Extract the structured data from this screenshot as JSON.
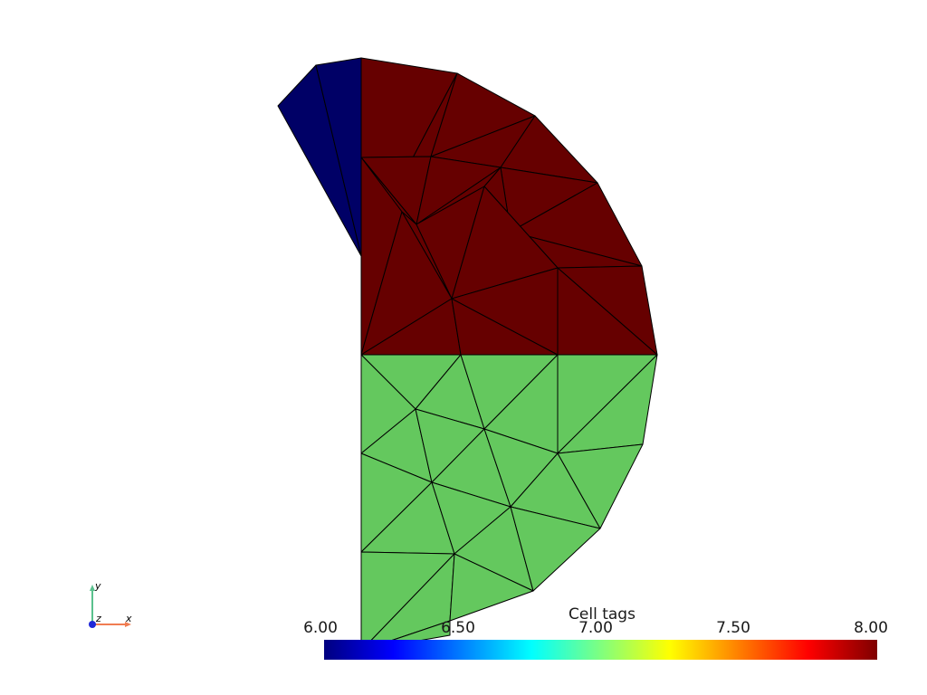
{
  "colors": {
    "tag6": "#000066",
    "tag7": "#64c85e",
    "tag8": "#660000",
    "edge": "#000000",
    "axis_x": "#f07d52",
    "axis_y": "#5ac18e",
    "axis_z": "#1f28d8"
  },
  "colormap": [
    "#00007f",
    "#0000ff",
    "#007fff",
    "#00ffff",
    "#7fff7f",
    "#ffff00",
    "#ff7f00",
    "#ff0000",
    "#7f0000"
  ],
  "scalar_bar": {
    "title": "Cell tags",
    "range": [
      6,
      8
    ],
    "tick_labels": [
      "6.00",
      "6.50",
      "7.00",
      "7.50",
      "8.00"
    ]
  },
  "axes": {
    "x": "x",
    "y": "y",
    "z": "z"
  },
  "mesh": {
    "nodes": [
      [
        0,
        0
      ],
      [
        0,
        1.09
      ],
      [
        0,
        2.18
      ],
      [
        0,
        3.28
      ],
      [
        1.06,
        3.11
      ],
      [
        1.92,
        2.64
      ],
      [
        2.61,
        1.9
      ],
      [
        3.1,
        0.98
      ],
      [
        3.27,
        0
      ],
      [
        1.0,
        0.62
      ],
      [
        2.17,
        0.96
      ],
      [
        1.36,
        1.86
      ],
      [
        0.61,
        1.44
      ],
      [
        0.77,
        2.19
      ],
      [
        1.65,
        1.36
      ],
      [
        2.17,
        0
      ],
      [
        1.1,
        0
      ],
      [
        0.45,
        1.58
      ],
      [
        1.1,
        2.36
      ],
      [
        1.54,
        2.07
      ],
      [
        2.18,
        1.08
      ],
      [
        0,
        -1.09
      ],
      [
        0,
        -2.18
      ],
      [
        1.1,
        0
      ],
      [
        2.17,
        0
      ],
      [
        3.27,
        0
      ],
      [
        3.11,
        -0.99
      ],
      [
        2.64,
        -1.92
      ],
      [
        1.9,
        -2.61
      ],
      [
        0.98,
        -3.1
      ],
      [
        0,
        -3.27
      ],
      [
        0.6,
        -0.6
      ],
      [
        1.36,
        -0.82
      ],
      [
        0.78,
        -1.41
      ],
      [
        2.17,
        -1.09
      ],
      [
        1.65,
        -1.68
      ],
      [
        1.03,
        -2.2
      ],
      [
        -0.92,
        2.75
      ],
      [
        -0.5,
        3.2
      ],
      [
        0.98,
        -2.94
      ]
    ],
    "tag6": [
      [
        37,
        1,
        38
      ],
      [
        38,
        1,
        3
      ]
    ],
    "tag8": [
      [
        3,
        1,
        4
      ],
      [
        1,
        13,
        4
      ],
      [
        4,
        13,
        5
      ],
      [
        13,
        19,
        5
      ],
      [
        5,
        19,
        6
      ],
      [
        19,
        14,
        6
      ],
      [
        6,
        14,
        7
      ],
      [
        14,
        10,
        7
      ],
      [
        10,
        8,
        7
      ],
      [
        1,
        2,
        13
      ],
      [
        2,
        12,
        13
      ],
      [
        13,
        12,
        19
      ],
      [
        12,
        11,
        19
      ],
      [
        19,
        11,
        14
      ],
      [
        11,
        10,
        14
      ],
      [
        2,
        17,
        12
      ],
      [
        17,
        9,
        12
      ],
      [
        12,
        9,
        11
      ],
      [
        9,
        10,
        11
      ],
      [
        2,
        0,
        17
      ],
      [
        0,
        9,
        17
      ],
      [
        0,
        16,
        9
      ],
      [
        16,
        15,
        9
      ],
      [
        9,
        15,
        10
      ],
      [
        15,
        8,
        10
      ]
    ],
    "tag7": [
      [
        0,
        31,
        23
      ],
      [
        0,
        21,
        31
      ],
      [
        23,
        31,
        32
      ],
      [
        23,
        32,
        24
      ],
      [
        24,
        32,
        34
      ],
      [
        24,
        34,
        25
      ],
      [
        25,
        34,
        26
      ],
      [
        21,
        33,
        31
      ],
      [
        31,
        33,
        32
      ],
      [
        32,
        33,
        35
      ],
      [
        32,
        35,
        34
      ],
      [
        34,
        35,
        27
      ],
      [
        34,
        27,
        26
      ],
      [
        21,
        22,
        33
      ],
      [
        22,
        36,
        33
      ],
      [
        33,
        36,
        35
      ],
      [
        35,
        36,
        28
      ],
      [
        35,
        28,
        27
      ],
      [
        22,
        30,
        36
      ],
      [
        30,
        39,
        36
      ],
      [
        36,
        39,
        28
      ],
      [
        30,
        29,
        39
      ]
    ]
  }
}
